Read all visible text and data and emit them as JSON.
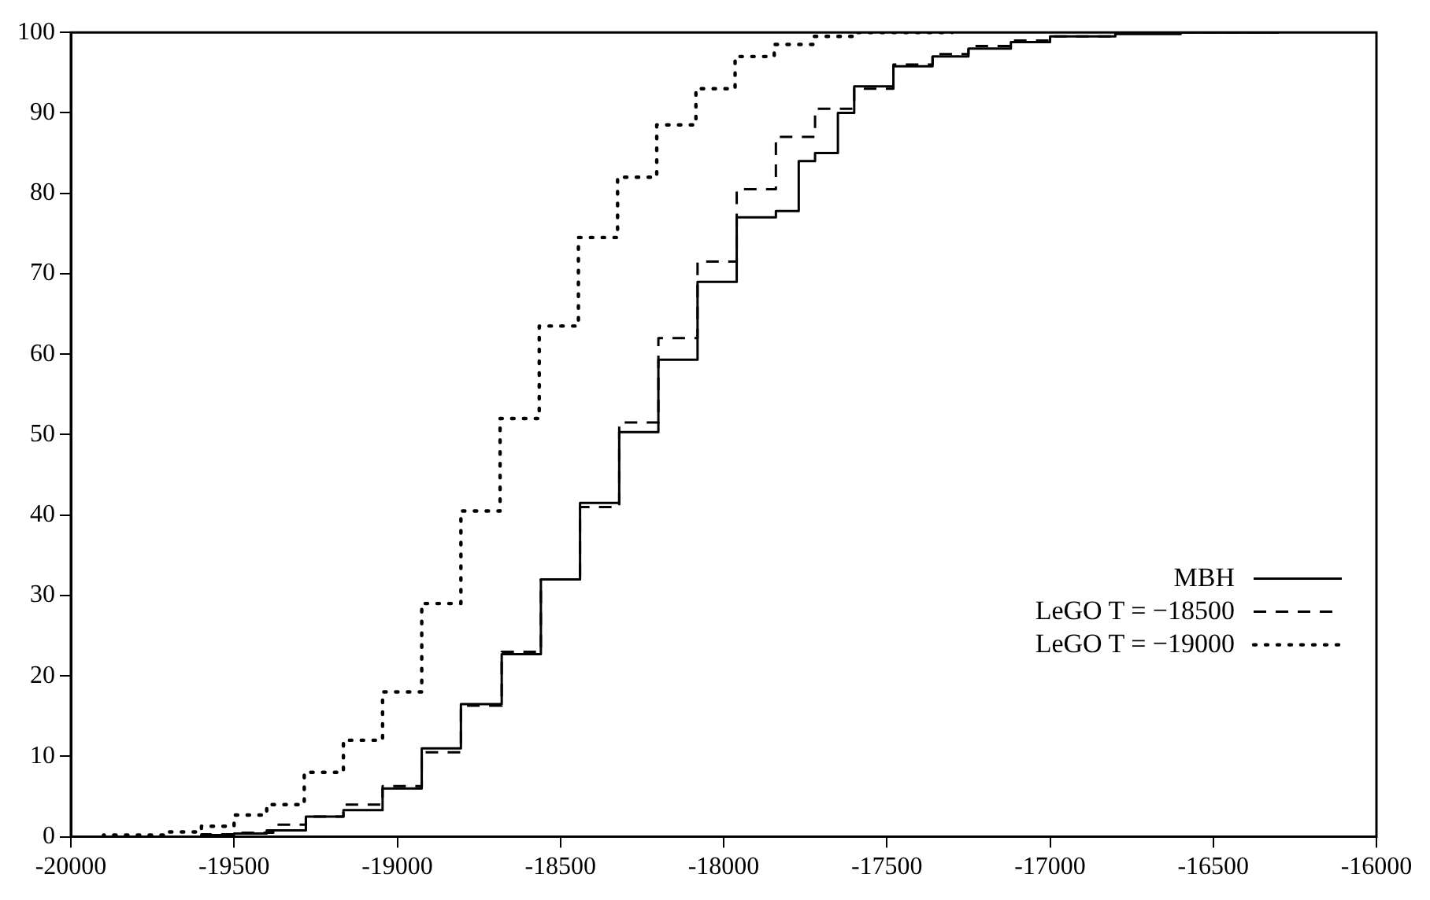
{
  "chart_data": {
    "type": "step",
    "xlim": [
      -20000,
      -16000
    ],
    "xticks": [
      -20000,
      -19500,
      -19000,
      -18500,
      -18000,
      -17500,
      -17000,
      -16500,
      -16000
    ],
    "ylim": [
      0,
      100
    ],
    "yticks": [
      0,
      10,
      20,
      30,
      40,
      50,
      60,
      70,
      80,
      90,
      100
    ],
    "grid": false,
    "legend": "bottom right",
    "marker": "none",
    "series": [
      {
        "name": "MBH",
        "color": "#000000",
        "line_style": "solid",
        "x": [
          -19600,
          -19500,
          -19400,
          -19280,
          -19165,
          -19045,
          -18925,
          -18805,
          -18680,
          -18560,
          -18440,
          -18320,
          -18200,
          -18080,
          -17960,
          -17840,
          -17770,
          -17720,
          -17650,
          -17600,
          -17480,
          -17360,
          -17250,
          -17120,
          -17000,
          -16800,
          -16600,
          -16300
        ],
        "values": [
          0,
          0.2,
          0.4,
          0.8,
          2.5,
          3.3,
          6,
          11,
          16.5,
          22.7,
          32,
          41.5,
          50.3,
          59.3,
          69,
          77,
          77.8,
          84,
          85,
          90,
          93.3,
          95.8,
          97,
          98,
          98.8,
          99.5,
          99.8,
          100
        ]
      },
      {
        "name": "LeGO T = −18500",
        "color": "#000000",
        "line_style": "dashed",
        "x": [
          -19600,
          -19480,
          -19380,
          -19280,
          -19165,
          -19045,
          -18925,
          -18805,
          -18680,
          -18560,
          -18440,
          -18320,
          -18200,
          -18080,
          -17960,
          -17840,
          -17720,
          -17600,
          -17480,
          -17360,
          -17250,
          -17120,
          -17000,
          -16800,
          -16500,
          -16300
        ],
        "values": [
          0,
          0.3,
          0.5,
          1.5,
          2.5,
          4,
          6.3,
          10.5,
          16.3,
          23,
          32,
          41,
          51.5,
          62,
          71.5,
          80.5,
          87,
          90.5,
          93,
          96,
          97.3,
          98.3,
          99,
          99.5,
          100,
          100
        ]
      },
      {
        "name": "LeGO T = −19000",
        "color": "#000000",
        "line_style": "dotted",
        "x": [
          -19900,
          -19700,
          -19600,
          -19500,
          -19400,
          -19285,
          -19165,
          -19045,
          -18925,
          -18805,
          -18685,
          -18565,
          -18445,
          -18325,
          -18205,
          -18085,
          -17965,
          -17845,
          -17725,
          -17600,
          -17400,
          -17300
        ],
        "values": [
          0,
          0.2,
          0.6,
          1.3,
          2.7,
          4,
          8,
          12,
          18,
          29,
          40.5,
          52,
          63.5,
          74.5,
          82,
          88.5,
          93,
          97,
          98.5,
          99.5,
          100,
          100
        ]
      }
    ]
  }
}
